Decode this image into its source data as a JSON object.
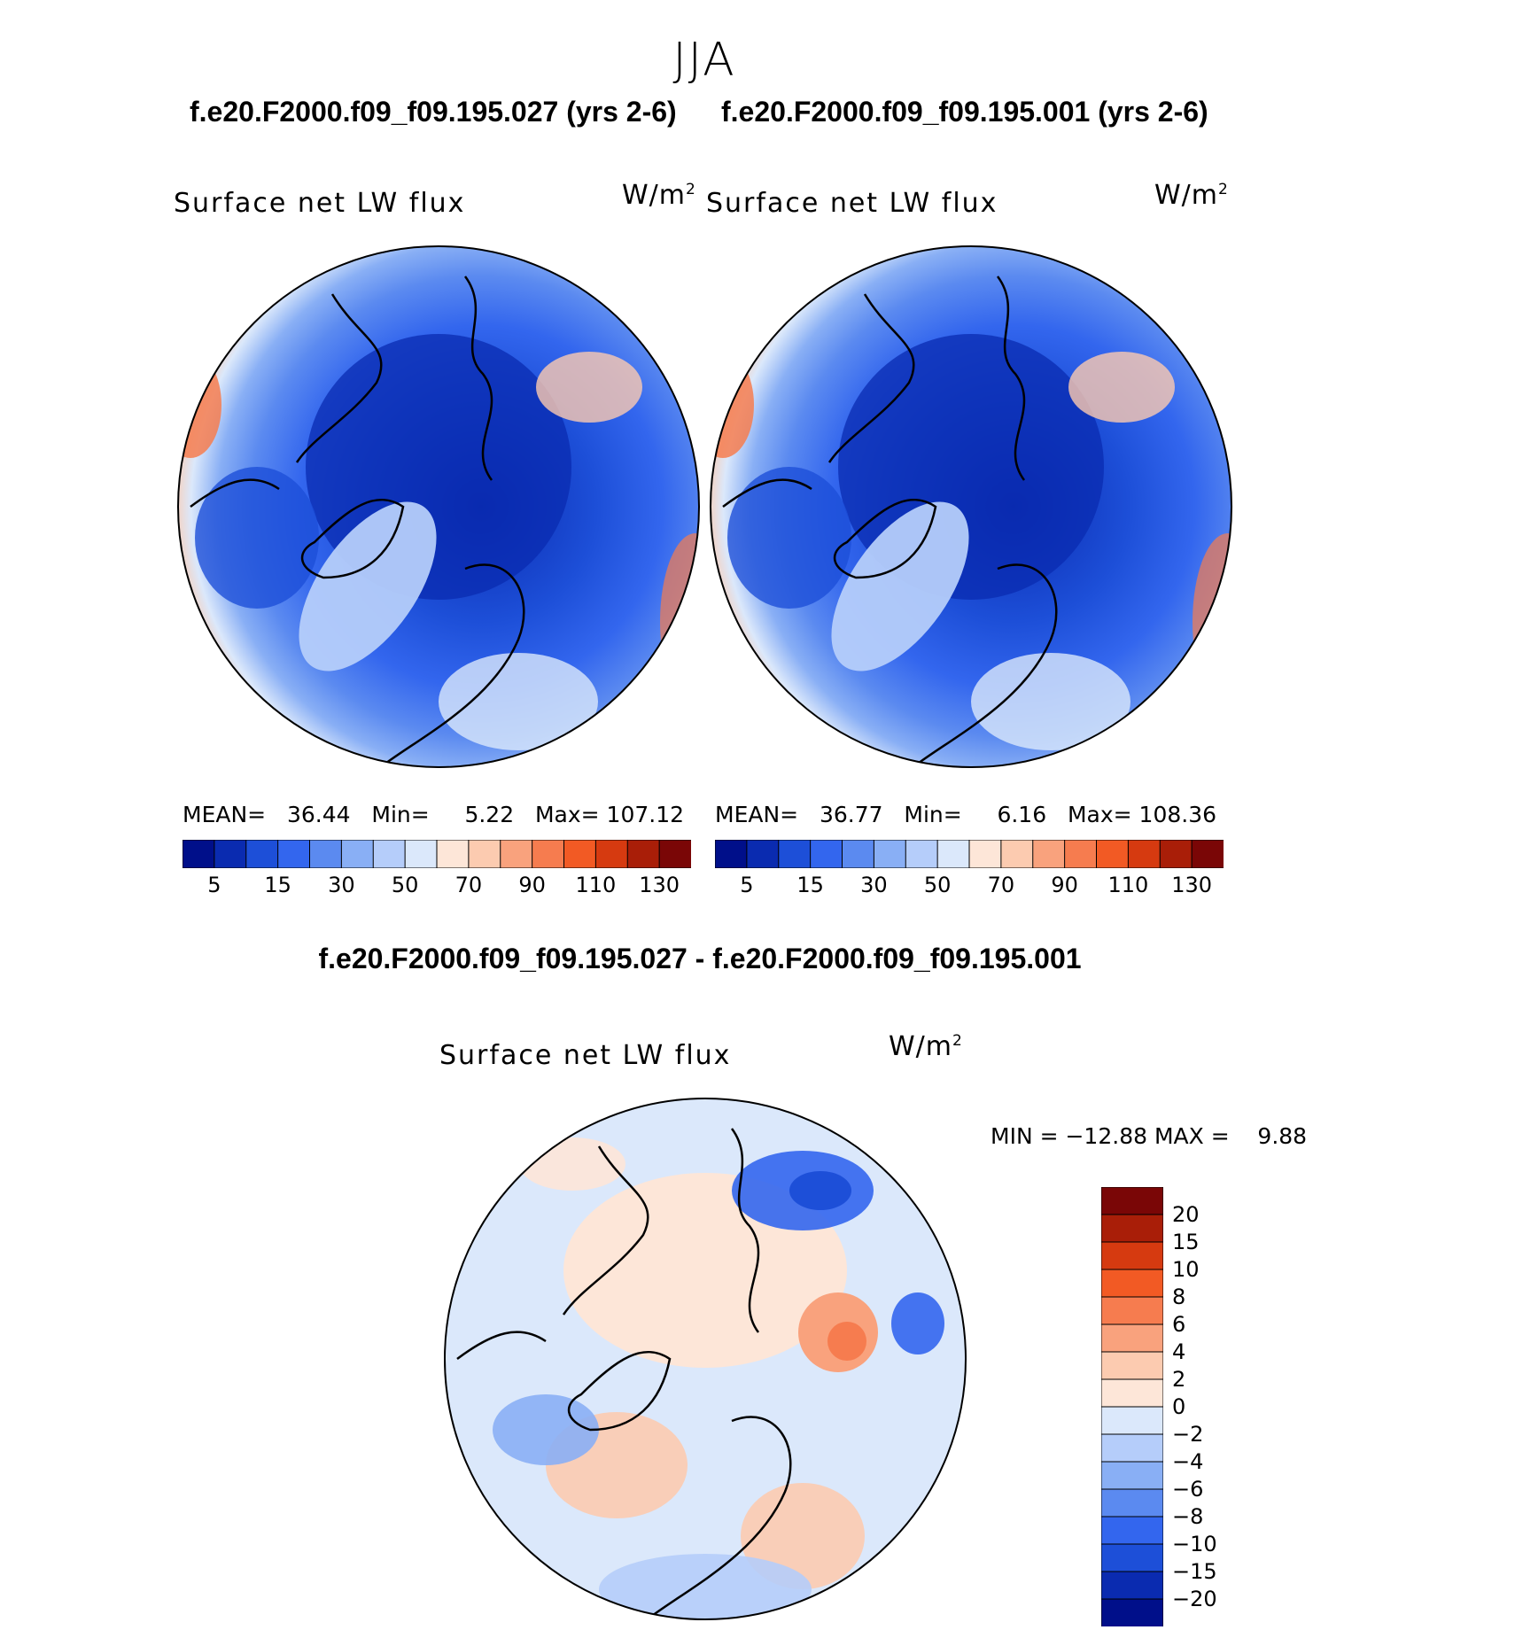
{
  "figure": {
    "season": "JJA",
    "variable": "Surface net LW flux",
    "units": "W/m",
    "units_sup": "2"
  },
  "panels": [
    {
      "title": "f.e20.F2000.f09_f09.195.027 (yrs 2-6)",
      "variable": "Surface net LW flux",
      "units": "W/m",
      "units_sup": "2",
      "mean_label": "MEAN=",
      "mean": "36.44",
      "min_label": "Min=",
      "min": "5.22",
      "max_label": "Max=",
      "max": "107.12"
    },
    {
      "title": "f.e20.F2000.f09_f09.195.001 (yrs 2-6)",
      "variable": "Surface net LW flux",
      "units": "W/m",
      "units_sup": "2",
      "mean_label": "MEAN=",
      "mean": "36.77",
      "min_label": "Min=",
      "min": "6.16",
      "max_label": "Max=",
      "max": "108.36"
    }
  ],
  "difference": {
    "title": "f.e20.F2000.f09_f09.195.027 - f.e20.F2000.f09_f09.195.001",
    "variable": "Surface net LW flux",
    "units": "W/m",
    "units_sup": "2",
    "minmax_text": "MIN = −12.88 MAX =    9.88"
  },
  "chart_data": [
    {
      "type": "heatmap",
      "projection": "north-polar-stereographic",
      "title": "f.e20.F2000.f09_f09.195.027 (yrs 2-6)",
      "variable": "Surface net LW flux",
      "units": "W/m2",
      "mean": 36.44,
      "min": 5.22,
      "max": 107.12,
      "colorbar_ticks": [
        "5",
        "15",
        "30",
        "50",
        "70",
        "90",
        "110",
        "130"
      ],
      "colorbar_colors": [
        "#000f8a",
        "#0a2bb0",
        "#1d4fd8",
        "#3366ee",
        "#5b8af0",
        "#89aff5",
        "#b5cdfa",
        "#dbe8fb",
        "#fde6d8",
        "#fccbb0",
        "#f9a27d",
        "#f67c4f",
        "#f25a24",
        "#d63a10",
        "#a91e08",
        "#7a0606"
      ]
    },
    {
      "type": "heatmap",
      "projection": "north-polar-stereographic",
      "title": "f.e20.F2000.f09_f09.195.001 (yrs 2-6)",
      "variable": "Surface net LW flux",
      "units": "W/m2",
      "mean": 36.77,
      "min": 6.16,
      "max": 108.36,
      "colorbar_ticks": [
        "5",
        "15",
        "30",
        "50",
        "70",
        "90",
        "110",
        "130"
      ],
      "colorbar_colors": [
        "#000f8a",
        "#0a2bb0",
        "#1d4fd8",
        "#3366ee",
        "#5b8af0",
        "#89aff5",
        "#b5cdfa",
        "#dbe8fb",
        "#fde6d8",
        "#fccbb0",
        "#f9a27d",
        "#f67c4f",
        "#f25a24",
        "#d63a10",
        "#a91e08",
        "#7a0606"
      ]
    },
    {
      "type": "heatmap",
      "projection": "north-polar-stereographic",
      "title": "f.e20.F2000.f09_f09.195.027 - f.e20.F2000.f09_f09.195.001",
      "variable": "Surface net LW flux",
      "units": "W/m2",
      "min": -12.88,
      "max": 9.88,
      "colorbar_ticks": [
        "20",
        "15",
        "10",
        "8",
        "6",
        "4",
        "2",
        "0",
        "−2",
        "−4",
        "−6",
        "−8",
        "−10",
        "−15",
        "−20"
      ],
      "colorbar_colors": [
        "#7a0606",
        "#a91e08",
        "#d63a10",
        "#f25a24",
        "#f67c4f",
        "#f9a27d",
        "#fccbb0",
        "#fde6d8",
        "#dbe8fb",
        "#b5cdfa",
        "#89aff5",
        "#5b8af0",
        "#3366ee",
        "#1d4fd8",
        "#0a2bb0",
        "#000f8a"
      ]
    }
  ]
}
